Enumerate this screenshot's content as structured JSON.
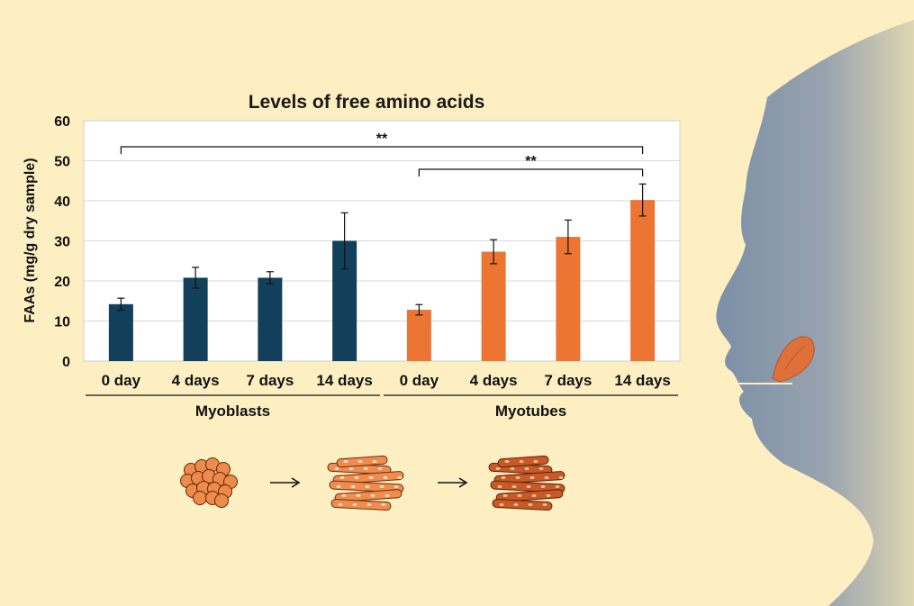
{
  "chart_data": {
    "type": "bar",
    "title": "Levels of free amino acids",
    "ylabel": "FAAs (mg/g dry sample)",
    "ylim": [
      0,
      60
    ],
    "yticks": [
      0,
      10,
      20,
      30,
      40,
      50,
      60
    ],
    "grid": true,
    "categories": [
      "0 day",
      "4 days",
      "7 days",
      "14 days",
      "0 day",
      "4 days",
      "7 days",
      "14 days"
    ],
    "groups": [
      {
        "name": "Myoblasts",
        "indices": [
          0,
          1,
          2,
          3
        ],
        "color": "#123f5a"
      },
      {
        "name": "Myotubes",
        "indices": [
          4,
          5,
          6,
          7
        ],
        "color": "#ec7533"
      }
    ],
    "values": [
      14.2,
      20.8,
      20.8,
      30.0,
      12.8,
      27.3,
      31.0,
      40.2
    ],
    "errors": [
      1.5,
      2.6,
      1.5,
      7.0,
      1.3,
      3.0,
      4.2,
      4.0
    ],
    "significance": [
      {
        "from": 0,
        "to": 7,
        "label": "**"
      },
      {
        "from": 4,
        "to": 7,
        "label": "**"
      }
    ]
  },
  "colors": {
    "background": "#fdefc2",
    "myoblasts": "#123f5a",
    "myotubes": "#ec7533",
    "face_start": "#7b8fa6",
    "face_end": "#d9d3b0",
    "tongue": "#e0703a"
  },
  "icons": [
    "myoblast-cluster-icon",
    "arrow-right-icon",
    "myotube-bundle-light-icon",
    "arrow-right-icon",
    "myotube-bundle-dark-icon",
    "face-silhouette-icon",
    "tongue-icon"
  ]
}
